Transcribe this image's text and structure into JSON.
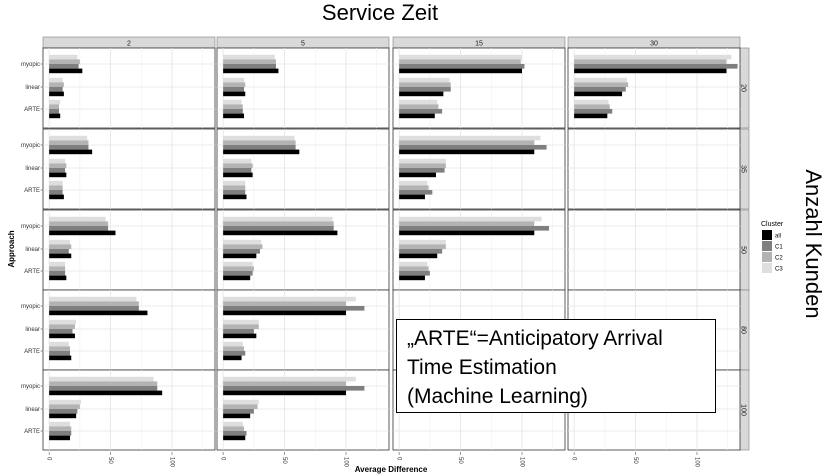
{
  "chart_data": {
    "type": "bar",
    "orientation": "horizontal",
    "title": "Service Zeit",
    "xlabel": "Average Difference",
    "ylabel": "Approach",
    "row_strip_title": "Anzahl Kunden",
    "facet_columns": [
      "2",
      "5",
      "15",
      "30"
    ],
    "facet_rows": [
      "20",
      "35",
      "50",
      "80",
      "100"
    ],
    "categories": [
      "myopic",
      "linear",
      "ARTE"
    ],
    "x_ticks": [
      "0",
      "50",
      "100"
    ],
    "xlim": [
      -5,
      135
    ],
    "legend": {
      "title": "Cluster",
      "position": "right",
      "entries": [
        "all",
        "C1",
        "C2",
        "C3"
      ],
      "colors": [
        "#000000",
        "#7f7f7f",
        "#b3b3b3",
        "#dedede"
      ]
    },
    "panels": [
      {
        "row": "20",
        "col": "2",
        "values": {
          "myopic": [
            27,
            24,
            25,
            23
          ],
          "linear": [
            12,
            11,
            12,
            11
          ],
          "ARTE": [
            9,
            8,
            8,
            9
          ]
        }
      },
      {
        "row": "20",
        "col": "5",
        "values": {
          "myopic": [
            45,
            43,
            43,
            42
          ],
          "linear": [
            18,
            17,
            18,
            17
          ],
          "ARTE": [
            17,
            16,
            16,
            15
          ]
        }
      },
      {
        "row": "20",
        "col": "15",
        "values": {
          "myopic": [
            100,
            102,
            99,
            100
          ],
          "linear": [
            36,
            42,
            42,
            41
          ],
          "ARTE": [
            29,
            35,
            32,
            31
          ]
        }
      },
      {
        "row": "20",
        "col": "30",
        "values": {
          "myopic": [
            124,
            133,
            124,
            128
          ],
          "linear": [
            39,
            42,
            44,
            43
          ],
          "ARTE": [
            27,
            31,
            29,
            28
          ]
        }
      },
      {
        "row": "35",
        "col": "2",
        "values": {
          "myopic": [
            35,
            32,
            32,
            31
          ],
          "linear": [
            14,
            13,
            14,
            13
          ],
          "ARTE": [
            12,
            11,
            11,
            11
          ]
        }
      },
      {
        "row": "35",
        "col": "5",
        "values": {
          "myopic": [
            62,
            59,
            59,
            58
          ],
          "linear": [
            24,
            23,
            24,
            23
          ],
          "ARTE": [
            19,
            18,
            18,
            18
          ]
        }
      },
      {
        "row": "35",
        "col": "15",
        "values": {
          "myopic": [
            110,
            120,
            110,
            115
          ],
          "linear": [
            30,
            37,
            38,
            38
          ],
          "ARTE": [
            21,
            27,
            24,
            23
          ]
        }
      },
      {
        "row": "50",
        "col": "2",
        "values": {
          "myopic": [
            54,
            48,
            48,
            46
          ],
          "linear": [
            18,
            16,
            18,
            17
          ],
          "ARTE": [
            14,
            13,
            13,
            13
          ]
        }
      },
      {
        "row": "50",
        "col": "5",
        "values": {
          "myopic": [
            93,
            90,
            90,
            89
          ],
          "linear": [
            27,
            30,
            32,
            31
          ],
          "ARTE": [
            22,
            24,
            25,
            24
          ]
        }
      },
      {
        "row": "50",
        "col": "15",
        "values": {
          "myopic": [
            110,
            122,
            110,
            116
          ],
          "linear": [
            31,
            35,
            38,
            38
          ],
          "ARTE": [
            21,
            25,
            24,
            23
          ]
        }
      },
      {
        "row": "80",
        "col": "2",
        "values": {
          "myopic": [
            80,
            73,
            73,
            71
          ],
          "linear": [
            21,
            19,
            21,
            22
          ],
          "ARTE": [
            18,
            17,
            17,
            16
          ]
        }
      },
      {
        "row": "80",
        "col": "5",
        "values": {
          "myopic": [
            100,
            115,
            100,
            108
          ],
          "linear": [
            27,
            25,
            29,
            29
          ],
          "ARTE": [
            15,
            18,
            17,
            16
          ]
        }
      },
      {
        "row": "100",
        "col": "2",
        "values": {
          "myopic": [
            92,
            88,
            88,
            85
          ],
          "linear": [
            22,
            23,
            25,
            26
          ],
          "ARTE": [
            17,
            18,
            18,
            17
          ]
        }
      },
      {
        "row": "100",
        "col": "5",
        "values": {
          "myopic": [
            100,
            115,
            100,
            108
          ],
          "linear": [
            22,
            25,
            28,
            29
          ],
          "ARTE": [
            18,
            19,
            17,
            16
          ]
        }
      }
    ]
  },
  "annotation": {
    "line1": "„ARTE“=Anticipatory Arrival",
    "line2": "Time Estimation",
    "line3": "(Machine Learning)"
  }
}
